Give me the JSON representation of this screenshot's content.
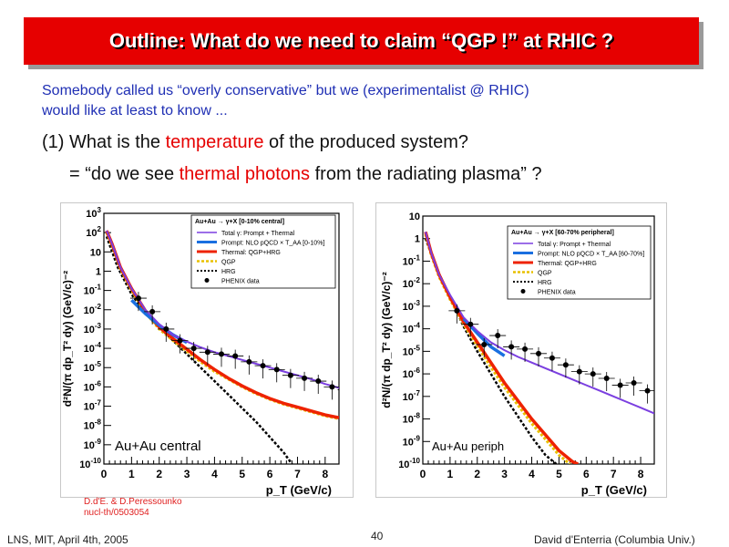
{
  "title": "Outline: What do we need to claim “QGP !” at RHIC ?",
  "intro": {
    "line1": "Somebody called us “overly conservative” but we (experimentalist @ RHIC)",
    "line2": "would like at least to know ..."
  },
  "question": {
    "prefix": "(1) What is the ",
    "highlight": "temperature",
    "suffix": " of the produced system?",
    "sub_prefix": "= “do we see ",
    "sub_highlight": "thermal photons",
    "sub_suffix": " from the radiating plasma” ?"
  },
  "reference": {
    "line1": "D.d'E. & D.Peressounko",
    "line2": "nucl-th/0503054"
  },
  "footer": {
    "left": "LNS, MIT, April 4th, 2005",
    "page": "40",
    "right": "David d'Enterria (Columbia Univ.)"
  },
  "colors": {
    "title_bg": "#e60000",
    "intro": "#1f2fb4",
    "highlight": "#e60000",
    "total": "#7b3fe0",
    "prompt": "#1a6fe0",
    "thermal": "#ee2200",
    "qgp": "#e8c000",
    "hrg": "#000000"
  },
  "chart_data": [
    {
      "type": "line",
      "panel_label": "Au+Au central",
      "xlabel": "p_T (GeV/c)",
      "ylabel": "d²N/(π dp_T² dy) (GeV/c)⁻²",
      "xlim": [
        0,
        8.5
      ],
      "ylim_log10": [
        -10,
        3
      ],
      "x_ticks": [
        "0",
        "1",
        "2",
        "3",
        "4",
        "5",
        "6",
        "7",
        "8"
      ],
      "y_ticks": [
        "10^{-10}",
        "10^{-9}",
        "10^{-8}",
        "10^{-7}",
        "10^{-6}",
        "10^{-5}",
        "10^{-4}",
        "10^{-3}",
        "10^{-2}",
        "10^{-1}",
        "1",
        "10",
        "10^{2}",
        "10^{3}"
      ],
      "legend_header": "Au+Au → γ+X   [0-10% central]",
      "legend": [
        "Total γ: Prompt + Thermal",
        "Prompt: NLO pQCD × T_AA [0-10%]",
        "Thermal: QGP+HRG",
        "QGP",
        "HRG",
        "PHENIX data"
      ],
      "series": [
        {
          "name": "Total γ: Prompt + Thermal",
          "x": [
            0.1,
            0.3,
            0.6,
            1,
            1.5,
            2,
            2.5,
            3,
            3.5,
            4,
            4.5,
            5,
            5.5,
            6,
            6.5,
            7,
            7.5,
            8,
            8.5
          ],
          "log10y": [
            2.1,
            1.4,
            0.2,
            -0.9,
            -2.0,
            -2.75,
            -3.3,
            -3.65,
            -3.95,
            -4.2,
            -4.4,
            -4.6,
            -4.8,
            -5.0,
            -5.2,
            -5.4,
            -5.6,
            -5.85,
            -6.05
          ]
        },
        {
          "name": "Prompt: NLO pQCD × T_AA [0-10%]",
          "x": [
            1.0,
            1.5,
            2.0,
            2.5,
            3.0
          ],
          "log10y": [
            -1.5,
            -2.2,
            -2.8,
            -3.3,
            -3.7
          ]
        },
        {
          "name": "Thermal: QGP+HRG",
          "x": [
            0.1,
            0.3,
            0.6,
            1,
            1.5,
            2,
            2.5,
            3,
            3.5,
            4,
            4.5,
            5,
            5.5,
            6,
            6.5,
            7,
            7.5,
            8,
            8.5
          ],
          "log10y": [
            2.1,
            1.4,
            0.2,
            -0.9,
            -2.05,
            -2.9,
            -3.5,
            -4.05,
            -4.6,
            -5.1,
            -5.55,
            -5.95,
            -6.3,
            -6.6,
            -6.85,
            -7.05,
            -7.25,
            -7.45,
            -7.6
          ]
        },
        {
          "name": "QGP",
          "x": [
            0.1,
            0.3,
            0.6,
            1,
            1.5,
            2,
            2.5,
            3,
            3.5,
            4,
            4.5,
            5,
            5.5,
            6,
            6.5,
            7,
            7.5,
            8,
            8.5
          ],
          "log10y": [
            2.0,
            1.3,
            0.1,
            -1.0,
            -2.15,
            -3.0,
            -3.6,
            -4.15,
            -4.7,
            -5.2,
            -5.6,
            -6.0,
            -6.35,
            -6.65,
            -6.9,
            -7.1,
            -7.3,
            -7.5,
            -7.65
          ]
        },
        {
          "name": "HRG",
          "x": [
            0.1,
            0.5,
            1,
            1.5,
            2,
            2.5,
            3,
            3.5,
            4,
            4.5,
            5,
            5.5,
            6,
            6.5,
            6.8
          ],
          "log10y": [
            1.8,
            0.2,
            -1.2,
            -2.2,
            -2.9,
            -3.6,
            -4.3,
            -5.0,
            -5.7,
            -6.4,
            -7.1,
            -7.8,
            -8.6,
            -9.4,
            -10.0
          ]
        },
        {
          "name": "PHENIX data",
          "x": [
            1.25,
            1.75,
            2.25,
            2.75,
            3.25,
            3.75,
            4.25,
            4.75,
            5.25,
            5.75,
            6.25,
            6.75,
            7.25,
            7.75,
            8.25,
            8.75
          ],
          "log10y": [
            -1.4,
            -2.1,
            -3.0,
            -3.6,
            -4.0,
            -4.2,
            -4.3,
            -4.4,
            -4.7,
            -4.9,
            -5.1,
            -5.4,
            -5.55,
            -5.7,
            -6.0,
            -6.15
          ]
        }
      ]
    },
    {
      "type": "line",
      "panel_label": "Au+Au periph",
      "xlabel": "p_T (GeV/c)",
      "ylabel": "d²N/(π dp_T² dy) (GeV/c)⁻²",
      "xlim": [
        0,
        8.5
      ],
      "ylim_log10": [
        -10,
        1
      ],
      "x_ticks": [
        "0",
        "1",
        "2",
        "3",
        "4",
        "5",
        "6",
        "7",
        "8"
      ],
      "y_ticks": [
        "10^{-10}",
        "10^{-9}",
        "10^{-8}",
        "10^{-7}",
        "10^{-6}",
        "10^{-5}",
        "10^{-4}",
        "10^{-3}",
        "10^{-2}",
        "10^{-1}",
        "1",
        "10"
      ],
      "legend_header": "Au+Au → γ+X   [60-70% peripheral]",
      "legend": [
        "Total γ: Prompt + Thermal",
        "Prompt: NLO pQCD × T_AA [60-70%]",
        "Thermal: QGP+HRG",
        "QGP",
        "HRG",
        "PHENIX data"
      ],
      "series": [
        {
          "name": "Total γ: Prompt + Thermal",
          "x": [
            0.1,
            0.3,
            0.6,
            1,
            1.5,
            2,
            2.5,
            3,
            3.5,
            4,
            4.5,
            5,
            5.5,
            6,
            6.5,
            7,
            7.5,
            8,
            8.5
          ],
          "log10y": [
            0.3,
            -0.6,
            -1.6,
            -2.5,
            -3.5,
            -4.1,
            -4.6,
            -4.95,
            -5.25,
            -5.5,
            -5.75,
            -6.0,
            -6.25,
            -6.5,
            -6.75,
            -7.0,
            -7.25,
            -7.5,
            -7.75
          ]
        },
        {
          "name": "Prompt: NLO pQCD × T_AA [60-70%]",
          "x": [
            1.5,
            2.0,
            2.5,
            3.0
          ],
          "log10y": [
            -3.55,
            -4.2,
            -4.8,
            -5.2
          ]
        },
        {
          "name": "Thermal: QGP+HRG",
          "x": [
            0.1,
            0.3,
            0.6,
            1,
            1.5,
            2,
            2.5,
            3,
            3.5,
            4,
            4.5,
            5,
            5.5,
            5.7
          ],
          "log10y": [
            0.3,
            -0.6,
            -1.6,
            -2.6,
            -3.7,
            -4.6,
            -5.5,
            -6.4,
            -7.2,
            -8.0,
            -8.7,
            -9.4,
            -9.9,
            -10.0
          ]
        },
        {
          "name": "QGP",
          "x": [
            0.1,
            0.3,
            0.6,
            1,
            1.5,
            2,
            2.5,
            3,
            3.5,
            4,
            4.5,
            5,
            5.4
          ],
          "log10y": [
            0.2,
            -0.7,
            -1.7,
            -2.7,
            -3.8,
            -4.75,
            -5.7,
            -6.6,
            -7.4,
            -8.2,
            -8.9,
            -9.6,
            -10.0
          ]
        },
        {
          "name": "HRG",
          "x": [
            0.1,
            0.5,
            1,
            1.5,
            2,
            2.5,
            3,
            3.5,
            4,
            4.5,
            4.9
          ],
          "log10y": [
            0.0,
            -1.3,
            -2.6,
            -3.9,
            -5.0,
            -6.0,
            -7.0,
            -7.9,
            -8.8,
            -9.6,
            -10.0
          ]
        },
        {
          "name": "PHENIX data",
          "x": [
            1.25,
            1.75,
            2.25,
            2.75,
            3.25,
            3.75,
            4.25,
            4.75,
            5.25,
            5.75,
            6.25,
            6.75,
            7.25,
            7.75,
            8.25
          ],
          "log10y": [
            -3.2,
            -3.8,
            -4.7,
            -4.3,
            -4.8,
            -4.9,
            -5.1,
            -5.3,
            -5.6,
            -5.9,
            -6.0,
            -6.2,
            -6.5,
            -6.4,
            -6.75
          ]
        }
      ]
    }
  ]
}
